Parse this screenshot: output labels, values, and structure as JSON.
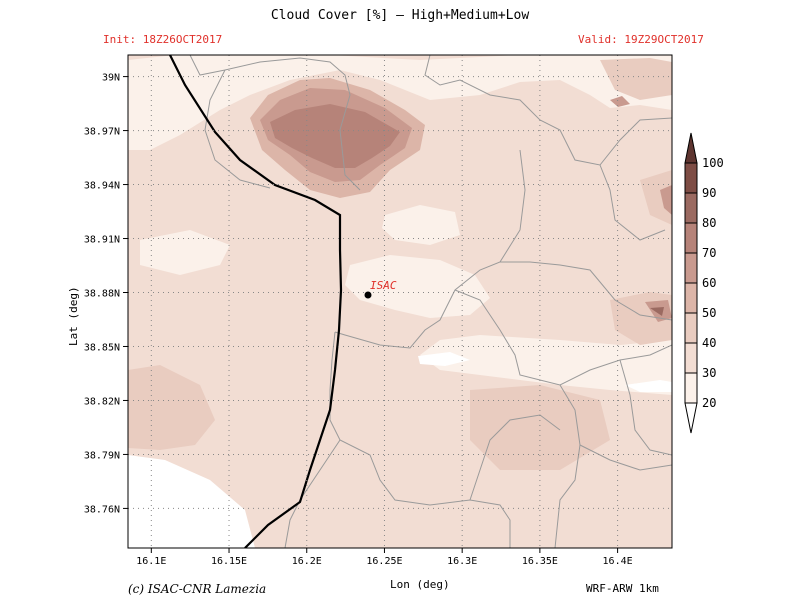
{
  "header": {
    "title": "Cloud Cover [%] — High+Medium+Low",
    "init": "Init: 18Z26OCT2017",
    "valid": "Valid: 19Z29OCT2017"
  },
  "axes": {
    "lat_label": "Lat (deg)",
    "lon_label": "Lon (deg)",
    "lat_ticks": [
      "39N",
      "38.97N",
      "38.94N",
      "38.91N",
      "38.88N",
      "38.85N",
      "38.82N",
      "38.79N",
      "38.76N"
    ],
    "lon_ticks": [
      "16.1E",
      "16.15E",
      "16.2E",
      "16.25E",
      "16.3E",
      "16.35E",
      "16.4E"
    ]
  },
  "map": {
    "station_label": "ISAC",
    "lon_range": [
      16.085,
      16.435
    ],
    "lat_range": [
      38.738,
      39.012
    ]
  },
  "colorbar": {
    "levels": [
      "20",
      "30",
      "40",
      "50",
      "60",
      "70",
      "80",
      "90",
      "100"
    ],
    "colors": [
      "#ffffff",
      "#fbf1ea",
      "#f2ddd3",
      "#e9ccc0",
      "#dcb5a8",
      "#c99a8f",
      "#b68379",
      "#9b6a61",
      "#7e4d45",
      "#5e3530"
    ]
  },
  "footer": {
    "credit": "(c) ISAC-CNR Lamezia",
    "model": "WRF-ARW 1km"
  }
}
